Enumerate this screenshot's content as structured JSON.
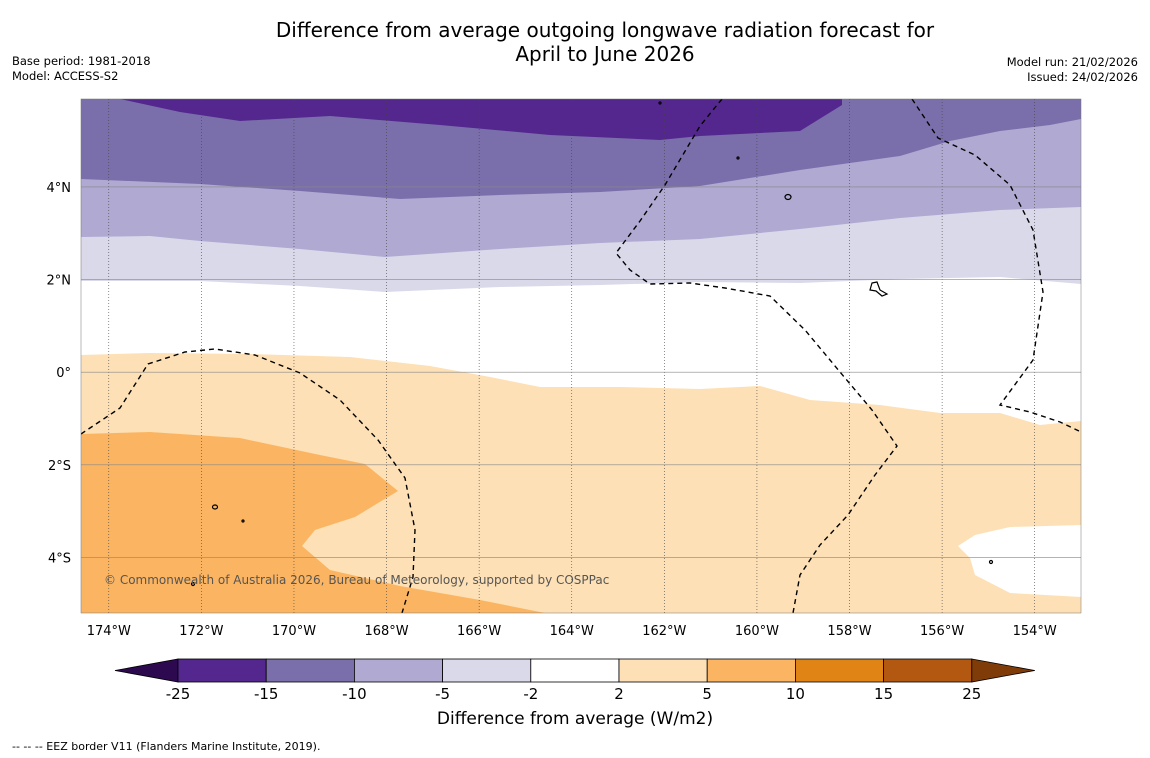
{
  "header": {
    "title_line1": "Difference from average outgoing longwave radiation forecast for",
    "title_line2": "April to June 2026",
    "base_period": "Base period: 1981-2018",
    "model": "Model: ACCESS-S2",
    "model_run": "Model run: 21/02/2026",
    "issued": "Issued: 24/02/2026"
  },
  "map": {
    "lon_range": [
      -174.6,
      -153.0
    ],
    "lat_range": [
      -5.2,
      5.9
    ],
    "lon_ticks": [
      {
        "value": -174,
        "label": "174°W"
      },
      {
        "value": -172,
        "label": "172°W"
      },
      {
        "value": -170,
        "label": "170°W"
      },
      {
        "value": -168,
        "label": "168°W"
      },
      {
        "value": -166,
        "label": "166°W"
      },
      {
        "value": -164,
        "label": "164°W"
      },
      {
        "value": -162,
        "label": "162°W"
      },
      {
        "value": -160,
        "label": "160°W"
      },
      {
        "value": -158,
        "label": "158°W"
      },
      {
        "value": -156,
        "label": "156°W"
      },
      {
        "value": -154,
        "label": "154°W"
      }
    ],
    "lat_ticks": [
      {
        "value": 4,
        "label": "4°N"
      },
      {
        "value": 2,
        "label": "2°N"
      },
      {
        "value": 0,
        "label": "0°"
      },
      {
        "value": -2,
        "label": "2°S"
      },
      {
        "value": -4,
        "label": "4°S"
      }
    ],
    "copyright": "© Commonwealth of Australia 2026, Bureau of Meteorology, supported by COSPPac"
  },
  "colorbar": {
    "title": "Difference from average (W/m2)",
    "ticks": [
      "-25",
      "-15",
      "-10",
      "-5",
      "-2",
      "2",
      "5",
      "10",
      "15",
      "25"
    ],
    "colors": [
      "#2d0a4f",
      "#54278f",
      "#7b6fab",
      "#b0a9d2",
      "#d9d9ea",
      "#ffffff",
      "#fde0b5",
      "#fbb562",
      "#e08416",
      "#b25810",
      "#7f3b08"
    ]
  },
  "footnote": "--  --  -- EEZ border V11 (Flanders Marine Institute, 2019)."
}
